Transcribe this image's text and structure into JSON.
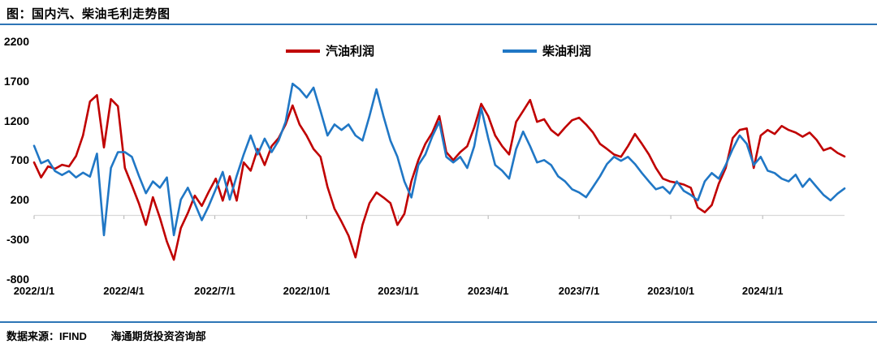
{
  "header": {
    "title": "图：国内汽、柴油毛利走势图"
  },
  "footer": {
    "source": "数据来源：IFIND",
    "department": "海通期货投资咨询部"
  },
  "colors": {
    "gasoline": "#C00000",
    "diesel": "#2077C5",
    "rule_blue": "#2E75B6",
    "gridline": "#D9D9D9",
    "tick": "#BFBFBF"
  },
  "chart_data": {
    "type": "line",
    "title": "国内汽、柴油毛利走势图",
    "xlabel": "",
    "ylabel": "",
    "ylim": [
      -800,
      2200
    ],
    "y_ticks": [
      2200,
      1700,
      1200,
      700,
      200,
      -300,
      -800
    ],
    "xlim_days": [
      0,
      812
    ],
    "x_start_day": 0,
    "x_step_days": 7,
    "x_ticks": [
      {
        "day": 0,
        "label": "2022/1/1"
      },
      {
        "day": 90,
        "label": "2022/4/1"
      },
      {
        "day": 181,
        "label": "2022/7/1"
      },
      {
        "day": 273,
        "label": "2022/10/1"
      },
      {
        "day": 365,
        "label": "2023/1/1"
      },
      {
        "day": 455,
        "label": "2023/4/1"
      },
      {
        "day": 546,
        "label": "2023/7/1"
      },
      {
        "day": 638,
        "label": "2023/10/1"
      },
      {
        "day": 730,
        "label": "2024/1/1"
      }
    ],
    "grid": "zero-line-only",
    "legend_position": "top-center",
    "series": [
      {
        "name": "汽油利润",
        "color": "#C00000",
        "values": [
          670,
          480,
          620,
          590,
          640,
          620,
          750,
          1010,
          1440,
          1520,
          860,
          1470,
          1380,
          600,
          380,
          150,
          -120,
          230,
          -30,
          -330,
          -560,
          -160,
          30,
          250,
          120,
          300,
          465,
          187,
          494,
          187,
          670,
          565,
          840,
          637,
          875,
          977,
          1150,
          1390,
          1150,
          1010,
          840,
          740,
          360,
          84,
          -80,
          -255,
          -530,
          -120,
          155,
          290,
          227,
          155,
          -120,
          21,
          432,
          700,
          905,
          1047,
          1255,
          800,
          700,
          800,
          875,
          1112,
          1410,
          1255,
          1010,
          875,
          770,
          1183,
          1320,
          1460,
          1183,
          1215,
          1080,
          1010,
          1112,
          1203,
          1235,
          1150,
          1047,
          905,
          840,
          770,
          740,
          875,
          1030,
          905,
          770,
          600,
          465,
          430,
          412,
          390,
          350,
          100,
          40,
          130,
          400,
          600,
          977,
          1080,
          1100,
          600,
          1010,
          1080,
          1030,
          1130,
          1080,
          1047,
          995,
          1047,
          955,
          823,
          855,
          790,
          745
        ]
      },
      {
        "name": "柴油利润",
        "color": "#2077C5",
        "values": [
          880,
          660,
          700,
          560,
          510,
          560,
          480,
          540,
          490,
          780,
          -250,
          600,
          800,
          800,
          740,
          500,
          280,
          430,
          350,
          480,
          -250,
          200,
          350,
          150,
          -60,
          120,
          330,
          550,
          200,
          500,
          770,
          1010,
          770,
          970,
          800,
          947,
          1183,
          1665,
          1595,
          1490,
          1615,
          1320,
          1010,
          1150,
          1080,
          1150,
          1010,
          947,
          1255,
          1595,
          1255,
          947,
          740,
          430,
          227,
          637,
          770,
          1000,
          1183,
          740,
          670,
          740,
          600,
          875,
          1357,
          977,
          637,
          565,
          465,
          840,
          1060,
          875,
          670,
          700,
          637,
          494,
          430,
          330,
          290,
          230,
          360,
          494,
          650,
          740,
          690,
          740,
          650,
          535,
          430,
          330,
          360,
          277,
          430,
          310,
          258,
          190,
          430,
          535,
          465,
          637,
          840,
          1010,
          905,
          637,
          740,
          565,
          535,
          465,
          430,
          515,
          360,
          465,
          360,
          258,
          190,
          275,
          340
        ]
      }
    ]
  }
}
